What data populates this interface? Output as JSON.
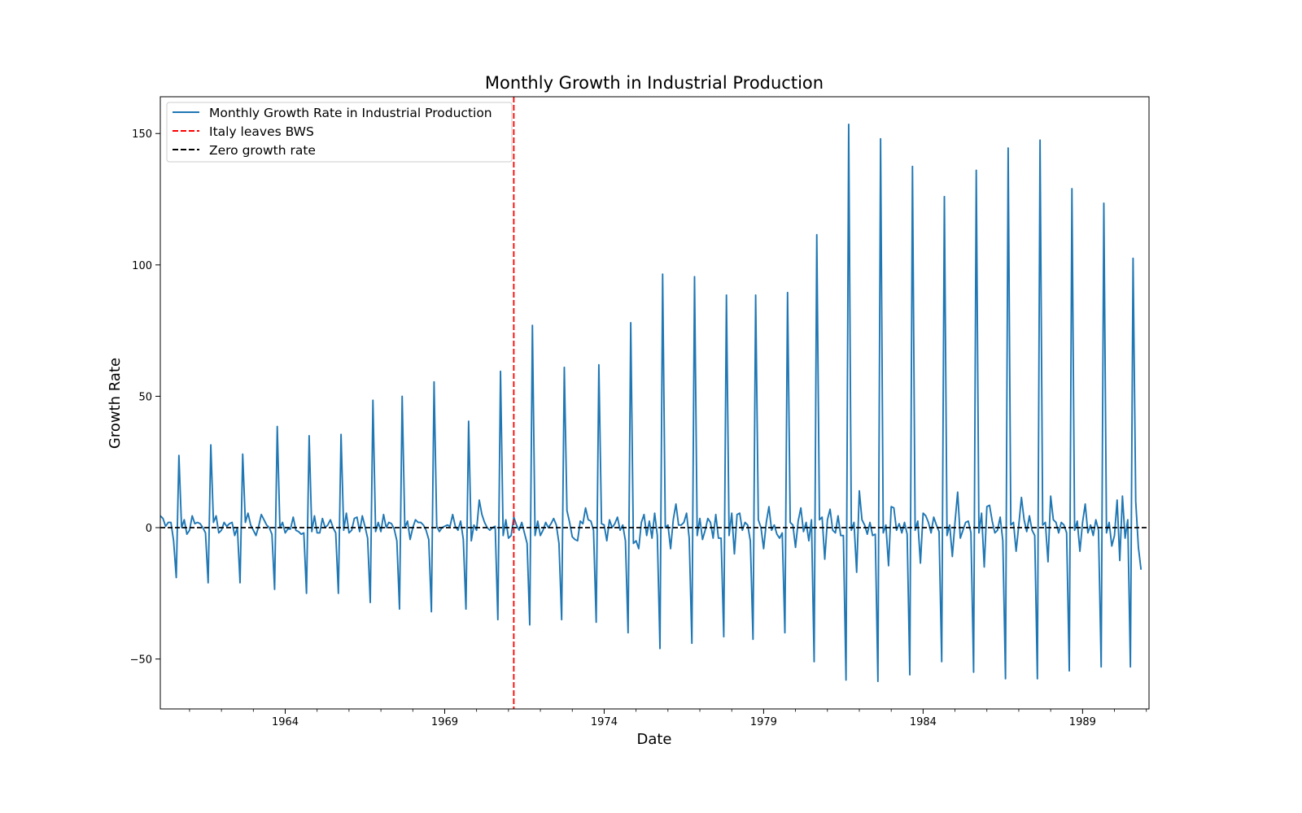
{
  "chart_data": {
    "type": "line",
    "title": "Monthly Growth in Industrial Production",
    "xlabel": "Date",
    "ylabel": "Growth Rate",
    "x_tick_labels": [
      "1964",
      "1969",
      "1974",
      "1979",
      "1984",
      "1989"
    ],
    "x_tick_years": [
      1964,
      1969,
      1974,
      1979,
      1984,
      1989
    ],
    "y_tick_labels": [
      "−50",
      "0",
      "50",
      "100",
      "150"
    ],
    "y_tick_values": [
      -50,
      0,
      50,
      100,
      150
    ],
    "xlim": [
      "1960-02",
      "1991-02"
    ],
    "ylim": [
      -69,
      164
    ],
    "x_start": "1960-02",
    "x_frequency": "monthly",
    "grid": false,
    "legend_position": "upper-left",
    "legend": [
      "Monthly Growth Rate in Industrial Production",
      "Italy leaves BWS",
      "Zero growth rate"
    ],
    "series": [
      {
        "name": "Monthly Growth Rate in Industrial Production",
        "color": "#1f77b4",
        "yearly_values": [
          [
            4.5,
            3.5,
            0.5,
            2.0,
            2.0,
            -5.0,
            -19.0,
            27.5,
            0.0,
            3.0,
            -2.5,
            -1.0
          ],
          [
            4.5,
            1.5,
            2.0,
            1.5,
            0.0,
            -2.0,
            -21.0,
            31.5,
            2.0,
            4.5,
            -2.0,
            -1.0
          ],
          [
            2.0,
            0.5,
            1.5,
            2.0,
            -3.0,
            0.0,
            -21.0,
            28.0,
            2.0,
            5.5,
            1.0,
            -1.0
          ],
          [
            -3.0,
            0.5,
            5.0,
            3.0,
            1.0,
            0.0,
            -2.5,
            -23.5,
            38.5,
            0.0,
            2.0,
            -2.0
          ],
          [
            -0.5,
            -0.5,
            4.0,
            -1.0,
            -1.5,
            -2.5,
            -2.0,
            -25.0,
            35.0,
            -1.5,
            4.5,
            -2.0
          ],
          [
            -2.0,
            3.5,
            0.0,
            1.0,
            3.0,
            0.0,
            -2.0,
            -25.0,
            35.5,
            -1.0,
            5.5,
            -2.0
          ],
          [
            -1.0,
            3.5,
            4.0,
            -1.5,
            4.5,
            0.5,
            -4.0,
            -28.5,
            48.5,
            -1.5,
            2.0,
            -1.5
          ],
          [
            5.0,
            0.0,
            2.0,
            1.5,
            -0.5,
            -5.0,
            -31.0,
            50.0,
            0.0,
            2.5,
            -4.5,
            0.0
          ],
          [
            3.0,
            2.0,
            2.0,
            1.0,
            -1.0,
            -4.5,
            -32.0,
            55.5,
            0.5,
            -1.5,
            0.0,
            0.5
          ],
          [
            1.0,
            0.5,
            5.0,
            0.5,
            -1.0,
            2.5,
            -4.5,
            -31.0,
            40.5,
            -5.0,
            1.0,
            -1.0
          ],
          [
            10.5,
            5.0,
            2.0,
            0.0,
            -1.0,
            0.0,
            0.5,
            -35.0,
            59.5,
            -3.0,
            3.0,
            -4.0
          ],
          [
            -3.0,
            4.0,
            1.0,
            -1.0,
            2.0,
            -2.0,
            -6.0,
            -37.0,
            77.0,
            -3.0,
            2.5,
            -3.0
          ],
          [
            -1.0,
            2.0,
            0.0,
            1.5,
            3.5,
            1.0,
            -6.0,
            -35.0,
            61.0,
            6.5,
            2.0,
            -3.5
          ],
          [
            -4.5,
            -5.0,
            2.5,
            1.5,
            7.5,
            3.0,
            2.5,
            -1.0,
            -36.0,
            62.0,
            1.5,
            1.0
          ],
          [
            -5.0,
            3.0,
            0.0,
            1.5,
            4.0,
            -1.0,
            1.0,
            -5.0,
            -40.0,
            78.0,
            -6.0,
            -5.0
          ],
          [
            -8.0,
            2.0,
            5.0,
            -3.0,
            2.5,
            -4.0,
            5.5,
            -3.0,
            -46.0,
            96.5,
            0.0,
            1.0
          ],
          [
            -8.0,
            3.0,
            9.0,
            1.0,
            1.0,
            2.0,
            5.5,
            -4.0,
            -44.0,
            95.5,
            -3.0,
            3.5
          ],
          [
            -4.5,
            -1.0,
            3.5,
            2.0,
            -4.0,
            5.0,
            -4.0,
            -4.0,
            -41.5,
            88.5,
            -3.0,
            5.5
          ],
          [
            -10.0,
            5.0,
            5.5,
            -1.0,
            2.0,
            1.0,
            -5.0,
            -42.5,
            88.5,
            3.0,
            0.0,
            -8.0
          ],
          [
            2.0,
            8.0,
            -1.0,
            1.0,
            -2.5,
            -4.0,
            -2.0,
            -40.0,
            89.5,
            2.0,
            1.0,
            -7.5
          ],
          [
            2.5,
            7.5,
            -1.5,
            2.0,
            -5.0,
            3.0,
            -51.0,
            111.5,
            3.0,
            4.0,
            -12.0,
            3.0
          ],
          [
            7.0,
            -1.0,
            -2.0,
            4.5,
            -3.0,
            -3.0,
            -58.0,
            153.5,
            -1.0,
            2.0,
            -17.0,
            14.0
          ],
          [
            3.0,
            1.0,
            -2.5,
            2.0,
            -3.0,
            -2.5,
            -58.5,
            148.0,
            -2.0,
            1.0,
            -14.5,
            8.0
          ],
          [
            7.5,
            -1.0,
            1.5,
            -2.0,
            2.0,
            -2.5,
            -56.0,
            137.5,
            -1.0,
            2.5,
            -13.5,
            5.5
          ],
          [
            4.5,
            2.0,
            -2.0,
            4.0,
            1.0,
            -1.5,
            -51.0,
            126.0,
            -3.0,
            1.0,
            -11.0,
            2.0
          ],
          [
            13.5,
            -4.0,
            -1.0,
            2.0,
            2.5,
            -2.0,
            -55.0,
            136.0,
            -2.0,
            5.5,
            -15.0,
            8.0
          ],
          [
            8.5,
            2.5,
            -2.0,
            -1.0,
            4.0,
            -5.0,
            -57.5,
            144.5,
            1.0,
            2.0,
            -9.0,
            1.0
          ],
          [
            11.5,
            3.0,
            -1.5,
            4.5,
            -1.0,
            -3.0,
            -57.5,
            147.5,
            1.0,
            2.0,
            -13.0,
            12.0
          ],
          [
            3.0,
            2.0,
            -2.0,
            2.0,
            1.0,
            -2.0,
            -54.5,
            129.0,
            -1.0,
            2.5,
            -9.0,
            2.0
          ],
          [
            9.0,
            -2.0,
            1.0,
            -3.0,
            3.0,
            -1.0,
            -53.0,
            123.5,
            -2.0,
            2.0,
            -7.0,
            -3.0
          ],
          [
            10.5,
            -12.5,
            12.0,
            -4.0,
            3.0,
            -53.0,
            102.5,
            10.0,
            -7.5,
            -16.0
          ]
        ]
      },
      {
        "name": "Italy leaves BWS",
        "kind": "vline",
        "x": "1971-03",
        "color": "#ff0000",
        "dash": "dashed"
      },
      {
        "name": "Zero growth rate",
        "kind": "hline",
        "y": 0,
        "color": "#000000",
        "dash": "dashed"
      }
    ]
  }
}
